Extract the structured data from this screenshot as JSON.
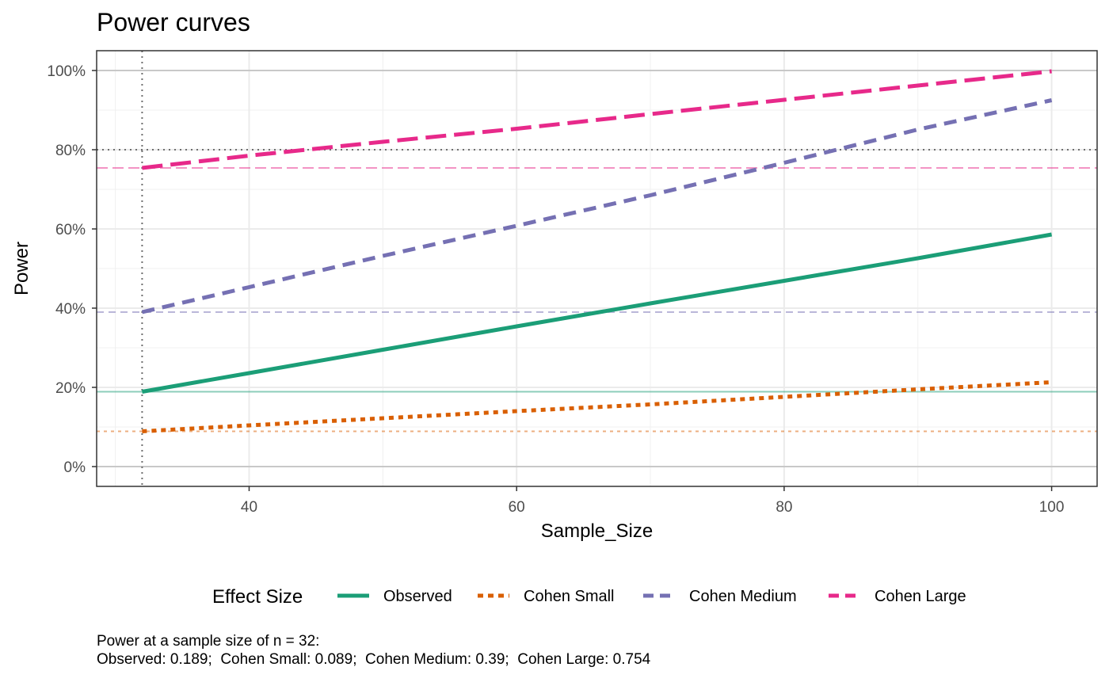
{
  "chart_data": {
    "type": "line",
    "title": "Power curves",
    "xlabel": "Sample_Size",
    "ylabel": "Power",
    "xlim": [
      28.6,
      103.4
    ],
    "ylim": [
      -0.05,
      1.05
    ],
    "x_ticks": [
      40,
      60,
      80,
      100
    ],
    "x_tick_labels": [
      "40",
      "60",
      "80",
      "100"
    ],
    "y_ticks": [
      0,
      0.2,
      0.4,
      0.6,
      0.8,
      1.0
    ],
    "y_tick_labels": [
      "0%",
      "20%",
      "40%",
      "60%",
      "80%",
      "100%"
    ],
    "grid": true,
    "legend": {
      "title": "Effect Size",
      "position": "bottom"
    },
    "reference_lines": {
      "vertical_x": 32,
      "horizontal_y": 0.8
    },
    "series": [
      {
        "name": "Observed",
        "color": "#1b9e77",
        "dash": "solid",
        "x": [
          32,
          40,
          50,
          60,
          70,
          80,
          90,
          100
        ],
        "y": [
          0.189,
          0.236,
          0.295,
          0.354,
          0.412,
          0.469,
          0.526,
          0.586
        ]
      },
      {
        "name": "Cohen Small",
        "color": "#d95f02",
        "dash": "dotted",
        "x": [
          32,
          40,
          50,
          60,
          70,
          80,
          90,
          100
        ],
        "y": [
          0.089,
          0.104,
          0.122,
          0.14,
          0.157,
          0.176,
          0.195,
          0.213
        ]
      },
      {
        "name": "Cohen Medium",
        "color": "#7570b3",
        "dash": "dashed",
        "x": [
          32,
          40,
          50,
          60,
          70,
          80,
          90,
          100
        ],
        "y": [
          0.39,
          0.453,
          0.532,
          0.608,
          0.685,
          0.767,
          0.851,
          0.925
        ]
      },
      {
        "name": "Cohen Large",
        "color": "#e7298a",
        "dash": "longdash",
        "x": [
          32,
          40,
          50,
          60,
          70,
          80,
          90,
          100
        ],
        "y": [
          0.754,
          0.785,
          0.82,
          0.853,
          0.89,
          0.926,
          0.962,
          0.998
        ]
      }
    ]
  },
  "caption": {
    "line1": "Power at a sample size of n = 32:",
    "line2": "Observed: 0.189;  Cohen Small: 0.089;  Cohen Medium: 0.39;  Cohen Large: 0.754"
  }
}
